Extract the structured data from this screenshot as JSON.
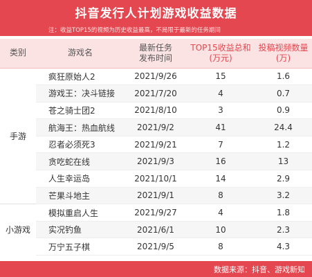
{
  "title": "抖音发行人计划游戏收益数据",
  "note": "注：收益TOP15的视频为历史收益最高，不局限于最新的任务期间",
  "headers": {
    "category": "类别",
    "game": "游戏名",
    "date": [
      "最新任务",
      "发布时间"
    ],
    "revenue": [
      "TOP15收益总和",
      "(万元)"
    ],
    "videos": [
      "投稿视频数量",
      "(万)"
    ]
  },
  "groups": [
    {
      "category": "手游",
      "rows": [
        {
          "game": "疯狂原始人2",
          "date": "2021/9/26",
          "revenue": "15",
          "videos": "1.6"
        },
        {
          "game": "游戏王：决斗链接",
          "date": "2021/7/20",
          "revenue": "4",
          "videos": "0.7"
        },
        {
          "game": "苍之骑士团2",
          "date": "2021/8/10",
          "revenue": "3",
          "videos": "0.9"
        },
        {
          "game": "航海王：热血航线",
          "date": "2021/9/2",
          "revenue": "41",
          "videos": "24.4"
        },
        {
          "game": "忍者必须死3",
          "date": "2021/9/21",
          "revenue": "7",
          "videos": "1.2"
        },
        {
          "game": "贪吃蛇在线",
          "date": "2021/9/3",
          "revenue": "16",
          "videos": "13"
        },
        {
          "game": "人生幸运岛",
          "date": "2021/10/1",
          "revenue": "14",
          "videos": "2.9"
        },
        {
          "game": "芒果斗地主",
          "date": "2021/9/1",
          "revenue": "8",
          "videos": "3.2"
        }
      ]
    },
    {
      "category": "小游戏",
      "rows": [
        {
          "game": "模拟重启人生",
          "date": "2021/9/27",
          "revenue": "4",
          "videos": "1.8"
        },
        {
          "game": "实况钓鱼",
          "date": "2021/6/1",
          "revenue": "10",
          "videos": "2.3"
        },
        {
          "game": "万宁五子棋",
          "date": "2021/9/5",
          "revenue": "8",
          "videos": "4.3"
        }
      ]
    }
  ],
  "footer": "数据来源：抖音、游戏新知"
}
